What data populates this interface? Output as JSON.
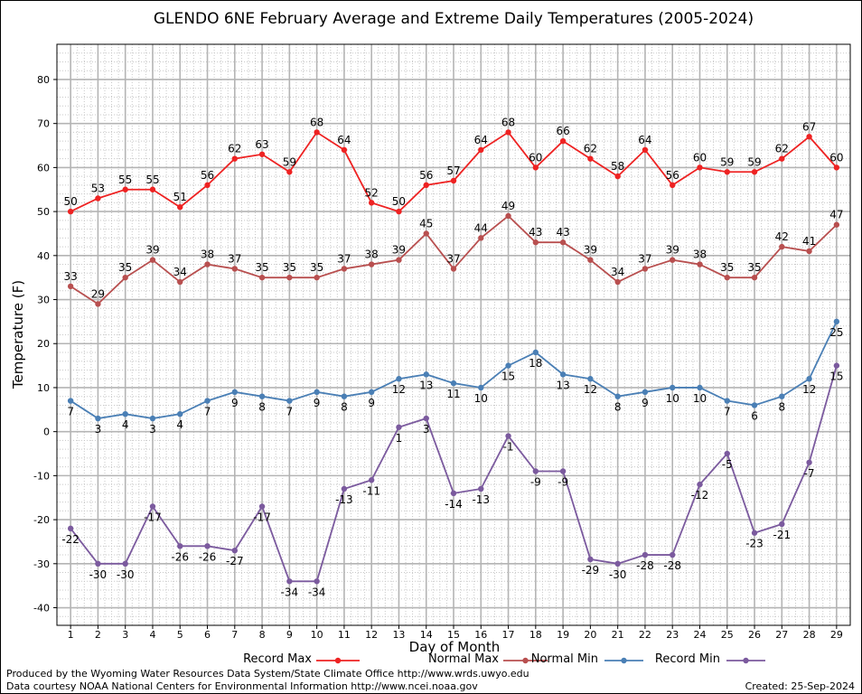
{
  "chart_data": {
    "type": "line",
    "title": "GLENDO 6NE February Average and Extreme Daily Temperatures (2005-2024)",
    "xlabel": "Day of Month",
    "ylabel": "Temperature (F)",
    "x": [
      1,
      2,
      3,
      4,
      5,
      6,
      7,
      8,
      9,
      10,
      11,
      12,
      13,
      14,
      15,
      16,
      17,
      18,
      19,
      20,
      21,
      22,
      23,
      24,
      25,
      26,
      27,
      28,
      29
    ],
    "x_tick_labels": [
      "1",
      "2",
      "3",
      "4",
      "5",
      "6",
      "7",
      "8",
      "9",
      "10",
      "11",
      "12",
      "13",
      "14",
      "15",
      "16",
      "17",
      "18",
      "19",
      "20",
      "21",
      "22",
      "23",
      "24",
      "25",
      "26",
      "27",
      "28",
      "29"
    ],
    "xlim": [
      0.5,
      29.5
    ],
    "ylim": [
      -44,
      88
    ],
    "y_ticks": [
      -40,
      -30,
      -20,
      -10,
      0,
      10,
      20,
      30,
      40,
      50,
      60,
      70,
      80
    ],
    "y_tick_labels": [
      "-40",
      "-30",
      "-20",
      "-10",
      "0",
      "10",
      "20",
      "30",
      "40",
      "50",
      "60",
      "70",
      "80"
    ],
    "grid": true,
    "legend_position": "bottom",
    "series": [
      {
        "name": "Record Max",
        "color": "#ee2222",
        "label_position": "above",
        "values": [
          50,
          53,
          55,
          55,
          51,
          56,
          62,
          63,
          59,
          68,
          64,
          52,
          50,
          56,
          57,
          64,
          68,
          60,
          66,
          62,
          58,
          64,
          56,
          60,
          59,
          59,
          62,
          67,
          60
        ]
      },
      {
        "name": "Normal Max",
        "color": "#b84f4f",
        "label_position": "above",
        "values": [
          33,
          29,
          35,
          39,
          34,
          38,
          37,
          35,
          35,
          35,
          37,
          38,
          39,
          45,
          37,
          44,
          49,
          43,
          43,
          39,
          34,
          37,
          39,
          38,
          35,
          35,
          42,
          41,
          47
        ]
      },
      {
        "name": "Normal Min",
        "color": "#4a7fb5",
        "label_position": "below",
        "values": [
          7,
          3,
          4,
          3,
          4,
          7,
          9,
          8,
          7,
          9,
          8,
          9,
          12,
          13,
          11,
          10,
          15,
          18,
          13,
          12,
          8,
          9,
          10,
          10,
          7,
          6,
          8,
          12,
          25
        ]
      },
      {
        "name": "Record Min",
        "color": "#7b5a9e",
        "label_position": "below",
        "values": [
          -22,
          -30,
          -30,
          -17,
          -26,
          -26,
          -27,
          -17,
          -34,
          -34,
          -13,
          -11,
          1,
          3,
          -14,
          -13,
          -1,
          -9,
          -9,
          -29,
          -30,
          -28,
          -28,
          -12,
          -5,
          -23,
          -21,
          -7,
          15
        ]
      }
    ]
  },
  "footer": {
    "line1": "Produced by the Wyoming Water Resources Data System/State Climate Office http://www.wrds.uwyo.edu",
    "line2": "Data courtesy NOAA National Centers for Environmental Information http://www.ncei.noaa.gov",
    "created": "Created:  25-Sep-2024"
  }
}
